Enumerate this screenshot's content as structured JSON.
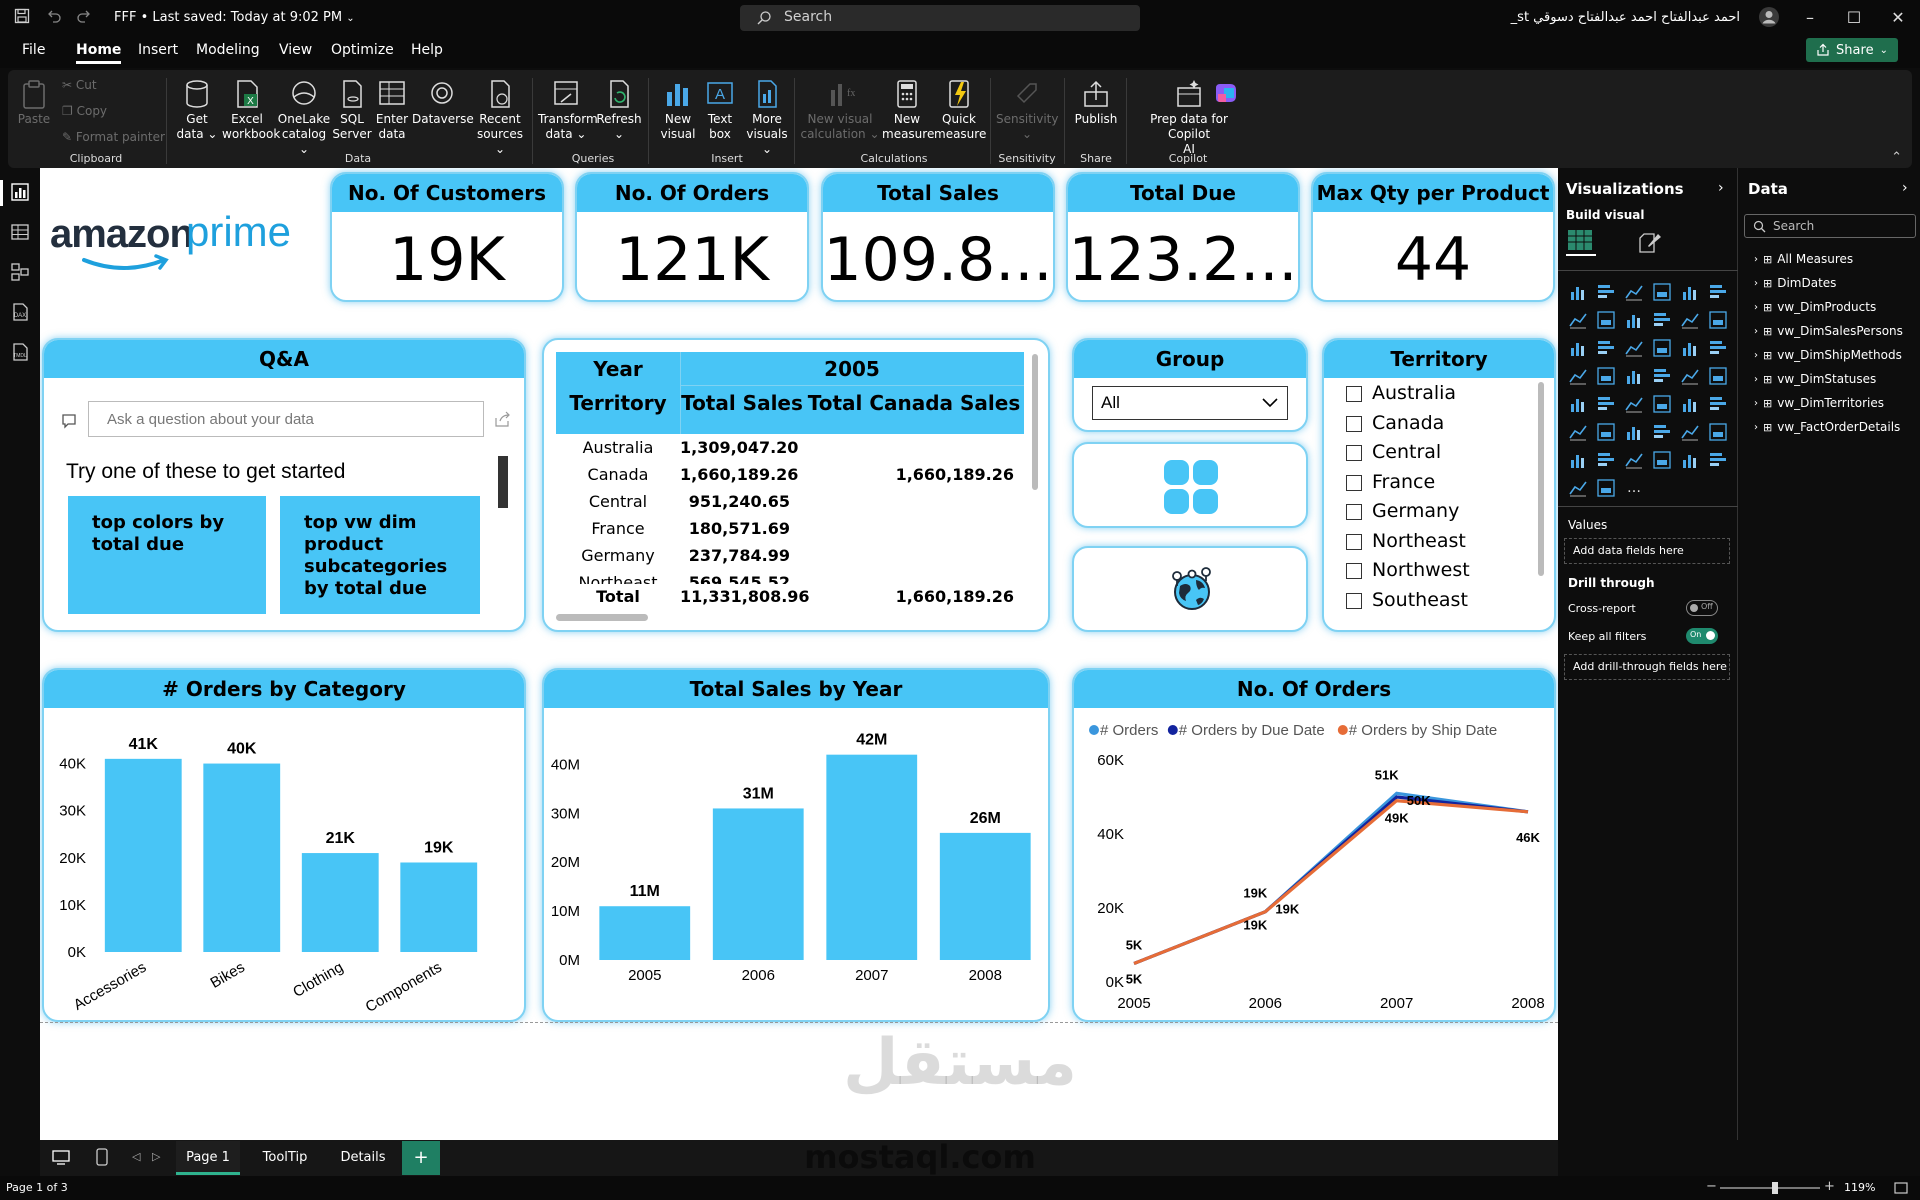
{
  "titlebar": {
    "doc_title": "FFF • Last saved: Today at 9:02 PM",
    "search_placeholder": "Search",
    "user_name": "احمد عبدالفتاح احمد عبدالفتاح دسوقي st_"
  },
  "menu": [
    "File",
    "Home",
    "Insert",
    "Modeling",
    "View",
    "Optimize",
    "Help"
  ],
  "share_label": "Share",
  "ribbon": {
    "clipboard": {
      "paste": "Paste",
      "cut": "Cut",
      "copy": "Copy",
      "format_painter": "Format painter",
      "group": "Clipboard"
    },
    "data": {
      "items": [
        {
          "l1": "Get",
          "l2": "data ⌄"
        },
        {
          "l1": "Excel",
          "l2": "workbook"
        },
        {
          "l1": "OneLake",
          "l2": "catalog ⌄"
        },
        {
          "l1": "SQL",
          "l2": "Server"
        },
        {
          "l1": "Enter",
          "l2": "data"
        },
        {
          "l1": "Dataverse",
          "l2": ""
        },
        {
          "l1": "Recent",
          "l2": "sources ⌄"
        }
      ],
      "group": "Data"
    },
    "queries": {
      "items": [
        {
          "l1": "Transform",
          "l2": "data ⌄"
        },
        {
          "l1": "Refresh",
          "l2": "⌄"
        }
      ],
      "group": "Queries"
    },
    "insert": {
      "items": [
        {
          "l1": "New",
          "l2": "visual"
        },
        {
          "l1": "Text",
          "l2": "box"
        },
        {
          "l1": "More",
          "l2": "visuals ⌄"
        }
      ],
      "group": "Insert"
    },
    "calculations": {
      "items": [
        {
          "l1": "New visual",
          "l2": "calculation ⌄"
        },
        {
          "l1": "New",
          "l2": "measure"
        },
        {
          "l1": "Quick",
          "l2": "measure"
        }
      ],
      "group": "Calculations"
    },
    "sensitivity": {
      "items": [
        {
          "l1": "Sensitivity",
          "l2": "⌄"
        }
      ],
      "group": "Sensitivity"
    },
    "share": {
      "items": [
        {
          "l1": "Publish",
          "l2": ""
        }
      ],
      "group": "Share"
    },
    "copilot": {
      "items": [
        {
          "l1": "Prep data for Copilot",
          "l2": "AI"
        },
        {
          "l1": "",
          "l2": ""
        }
      ],
      "group": "Copilot"
    }
  },
  "report": {
    "logo": {
      "word1": "amazon",
      "word2": "prime"
    },
    "kpis": [
      {
        "title": "No. Of Customers",
        "value": "19K"
      },
      {
        "title": "No. Of Orders",
        "value": "121K"
      },
      {
        "title": "Total Sales",
        "value": "109.8..."
      },
      {
        "title": "Total Due",
        "value": "123.2..."
      },
      {
        "title": "Max Qty per Product",
        "value": "44"
      }
    ],
    "qa": {
      "title": "Q&A",
      "placeholder": "Ask a question about your data",
      "prompt": "Try one of these to get started",
      "suggestions": [
        "top colors by total due",
        "top vw dim product subcategories by total due"
      ]
    },
    "matrix": {
      "year_label": "Year",
      "year": "2005",
      "row_header": "Territory",
      "col1": "Total Sales",
      "col2": "Total Canada Sales",
      "rows": [
        {
          "t": "Australia",
          "s": "1,309,047.20",
          "c": ""
        },
        {
          "t": "Canada",
          "s": "1,660,189.26",
          "c": "1,660,189.26"
        },
        {
          "t": "Central",
          "s": "951,240.65",
          "c": ""
        },
        {
          "t": "France",
          "s": "180,571.69",
          "c": ""
        },
        {
          "t": "Germany",
          "s": "237,784.99",
          "c": ""
        },
        {
          "t": "Northeast",
          "s": "569,545.52",
          "c": ""
        }
      ],
      "total": {
        "t": "Total",
        "s": "11,331,808.96",
        "c": "1,660,189.26"
      }
    },
    "group_slicer": {
      "title": "Group",
      "value": "All"
    },
    "territory_slicer": {
      "title": "Territory",
      "items": [
        "Australia",
        "Canada",
        "Central",
        "France",
        "Germany",
        "Northeast",
        "Northwest",
        "Southeast"
      ]
    }
  },
  "chart_data": [
    {
      "type": "bar",
      "title": "# Orders by Category",
      "categories": [
        "Accessories",
        "Bikes",
        "Clothing",
        "Components"
      ],
      "values": [
        41000,
        40000,
        21000,
        19000
      ],
      "labels": [
        "41K",
        "40K",
        "21K",
        "19K"
      ],
      "yticks": [
        "0K",
        "10K",
        "20K",
        "30K",
        "40K"
      ],
      "ylim": [
        0,
        45000
      ],
      "color": "#48c5f6"
    },
    {
      "type": "bar",
      "title": "Total Sales by Year",
      "categories": [
        "2005",
        "2006",
        "2007",
        "2008"
      ],
      "values": [
        11000000,
        31000000,
        42000000,
        26000000
      ],
      "labels": [
        "11M",
        "31M",
        "42M",
        "26M"
      ],
      "yticks": [
        "0M",
        "10M",
        "20M",
        "30M",
        "40M"
      ],
      "ylim": [
        0,
        45000000
      ],
      "color": "#48c5f6"
    },
    {
      "type": "line",
      "title": "No. Of Orders",
      "x": [
        "2005",
        "2006",
        "2007",
        "2008"
      ],
      "yticks": [
        "0K",
        "20K",
        "40K",
        "60K"
      ],
      "ylim": [
        0,
        60000
      ],
      "legend_position": "top-left",
      "series": [
        {
          "name": "# Orders",
          "color": "#3a96dd",
          "values": [
            5000,
            19000,
            51000,
            46000
          ],
          "labels": [
            "5K",
            "19K",
            "51K",
            "46K"
          ]
        },
        {
          "name": "# Orders by Due Date",
          "color": "#12239e",
          "values": [
            5000,
            19000,
            50000,
            46000
          ],
          "labels": [
            "5K",
            "19K",
            "50K",
            ""
          ]
        },
        {
          "name": "# Orders by Ship Date",
          "color": "#e66c37",
          "values": [
            5000,
            19000,
            49000,
            46000
          ],
          "labels": [
            "",
            "19K",
            "49K",
            ""
          ]
        }
      ]
    }
  ],
  "visualizations": {
    "title": "Visualizations",
    "build_visual": "Build visual",
    "values_label": "Values",
    "values_placeholder": "Add data fields here",
    "drill_through": "Drill through",
    "cross_report": "Cross-report",
    "cross_report_state": "Off",
    "keep_filters": "Keep all filters",
    "keep_filters_state": "On",
    "drill_placeholder": "Add drill-through fields here"
  },
  "data_pane": {
    "title": "Data",
    "search_placeholder": "Search",
    "tables": [
      "All Measures",
      "DimDates",
      "vw_DimProducts",
      "vw_DimSalesPersons",
      "vw_DimShipMethods",
      "vw_DimStatuses",
      "vw_DimTerritories",
      "vw_FactOrderDetails"
    ]
  },
  "pages": {
    "tabs": [
      "Page 1",
      "ToolTip",
      "Details"
    ],
    "add": "+"
  },
  "status": {
    "page": "Page 1 of 3",
    "zoom": "119%"
  },
  "watermark": {
    "arabic": "مستقل",
    "latin": "mostaql.com"
  },
  "colors": {
    "accent": "#48c5f6",
    "card_border": "#7fd2f3",
    "ribbon": "#1c1c1c",
    "share": "#1f6e4d"
  }
}
